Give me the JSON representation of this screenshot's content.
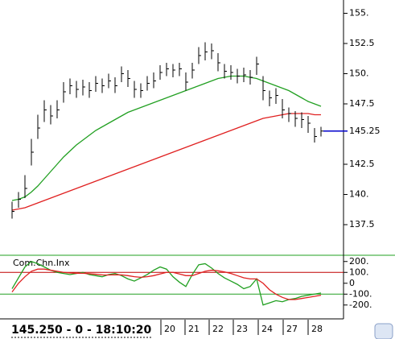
{
  "chart_data": [
    {
      "type": "ohlc",
      "color": "#000000",
      "close": [
        138.6,
        139.6,
        140.5,
        143.5,
        145.5,
        147.0,
        146.5,
        147.0,
        148.5,
        149.0,
        148.7,
        148.9,
        148.6,
        149.2,
        149.0,
        149.4,
        149.0,
        150.0,
        149.6,
        148.7,
        148.6,
        149.2,
        149.4,
        150.1,
        150.4,
        150.3,
        150.4,
        149.3,
        150.3,
        151.5,
        151.8,
        151.9,
        150.9,
        150.2,
        150.1,
        149.8,
        149.9,
        149.7,
        150.8,
        148.6,
        148.0,
        148.2,
        147.0,
        146.7,
        146.3,
        146.2,
        145.9,
        144.8,
        145.25
      ],
      "high": [
        139.4,
        140.2,
        141.6,
        144.6,
        146.6,
        147.8,
        147.4,
        147.8,
        149.3,
        149.6,
        149.4,
        149.5,
        149.3,
        149.8,
        149.6,
        150.0,
        149.7,
        150.6,
        150.3,
        149.4,
        149.2,
        149.8,
        150.1,
        150.7,
        150.9,
        150.8,
        150.9,
        150.1,
        150.9,
        152.2,
        152.6,
        152.5,
        151.7,
        150.8,
        150.7,
        150.4,
        150.5,
        150.3,
        151.4,
        149.8,
        148.6,
        148.8,
        147.9,
        147.2,
        146.9,
        146.8,
        146.5,
        145.5,
        145.6
      ],
      "low": [
        138.0,
        138.9,
        139.7,
        142.4,
        144.6,
        146.0,
        145.8,
        146.3,
        147.6,
        148.3,
        148.0,
        148.2,
        148.0,
        148.5,
        148.4,
        148.8,
        148.4,
        149.3,
        148.9,
        148.0,
        148.0,
        148.6,
        148.8,
        149.5,
        149.8,
        149.7,
        149.8,
        148.6,
        149.6,
        150.8,
        151.1,
        151.2,
        150.2,
        149.6,
        149.5,
        149.2,
        149.3,
        149.1,
        149.9,
        147.8,
        147.3,
        147.5,
        146.3,
        146.0,
        145.6,
        145.5,
        145.1,
        144.3,
        144.8
      ],
      "series": [
        {
          "color": "#22a022",
          "values": [
            139.5,
            139.6,
            139.8,
            140.2,
            140.7,
            141.3,
            141.9,
            142.5,
            143.1,
            143.6,
            144.1,
            144.5,
            144.9,
            145.3,
            145.6,
            145.9,
            146.2,
            146.5,
            146.8,
            147.0,
            147.2,
            147.4,
            147.6,
            147.8,
            148.0,
            148.2,
            148.4,
            148.6,
            148.8,
            149.0,
            149.2,
            149.4,
            149.6,
            149.7,
            149.8,
            149.8,
            149.8,
            149.7,
            149.6,
            149.4,
            149.2,
            149.0,
            148.8,
            148.6,
            148.3,
            148.0,
            147.7,
            147.5,
            147.3
          ]
        },
        {
          "color": "#e02020",
          "values": [
            138.7,
            138.8,
            138.9,
            139.1,
            139.3,
            139.5,
            139.7,
            139.9,
            140.1,
            140.3,
            140.5,
            140.7,
            140.9,
            141.1,
            141.3,
            141.5,
            141.7,
            141.9,
            142.1,
            142.3,
            142.5,
            142.7,
            142.9,
            143.1,
            143.3,
            143.5,
            143.7,
            143.9,
            144.1,
            144.3,
            144.5,
            144.7,
            144.9,
            145.1,
            145.3,
            145.5,
            145.7,
            145.9,
            146.1,
            146.3,
            146.4,
            146.5,
            146.6,
            146.7,
            146.7,
            146.7,
            146.7,
            146.6,
            146.6
          ]
        }
      ],
      "last_price": {
        "value": 145.25,
        "color": "#0000cc"
      },
      "ylim": [
        135.1,
        156.1
      ],
      "yticks": [
        {
          "value": 155,
          "label": "155."
        },
        152.5,
        {
          "value": 150,
          "label": "150."
        },
        147.5,
        142.5,
        {
          "value": 140,
          "label": "140."
        },
        137.5
      ]
    },
    {
      "type": "line",
      "label": "Com.Chn.Inx",
      "series": [
        {
          "color": "#22a022",
          "values": [
            -50,
            50,
            150,
            200,
            180,
            150,
            120,
            100,
            90,
            80,
            90,
            100,
            80,
            70,
            60,
            80,
            90,
            70,
            40,
            20,
            50,
            80,
            120,
            150,
            130,
            60,
            10,
            -30,
            80,
            170,
            180,
            140,
            90,
            50,
            20,
            -10,
            -50,
            -30,
            40,
            -200,
            -180,
            -160,
            -170,
            -150,
            -140,
            -120,
            -110,
            -100,
            -90
          ]
        },
        {
          "color": "#e02020",
          "values": [
            -80,
            0,
            60,
            110,
            130,
            130,
            120,
            110,
            100,
            95,
            92,
            92,
            88,
            83,
            77,
            76,
            78,
            77,
            70,
            60,
            55,
            60,
            70,
            85,
            100,
            100,
            85,
            70,
            70,
            90,
            110,
            120,
            115,
            105,
            90,
            70,
            50,
            40,
            40,
            0,
            -60,
            -100,
            -130,
            -150,
            -150,
            -140,
            -130,
            -120,
            -110
          ]
        }
      ],
      "levels": [
        {
          "value": 100,
          "color": "#c00000"
        },
        {
          "value": -100,
          "color": "#22a022"
        }
      ],
      "ylim": [
        -320,
        250
      ],
      "yticks": [
        {
          "value": 200,
          "label": "200."
        },
        {
          "value": 100,
          "label": "100."
        },
        0,
        {
          "value": -100,
          "label": "-100."
        },
        {
          "value": -200,
          "label": "-200."
        }
      ],
      "day_labels": [
        "20",
        "21",
        "22",
        "23",
        "24",
        "27",
        "28"
      ]
    }
  ],
  "status": "145.250 - 0 - 18:10:20"
}
